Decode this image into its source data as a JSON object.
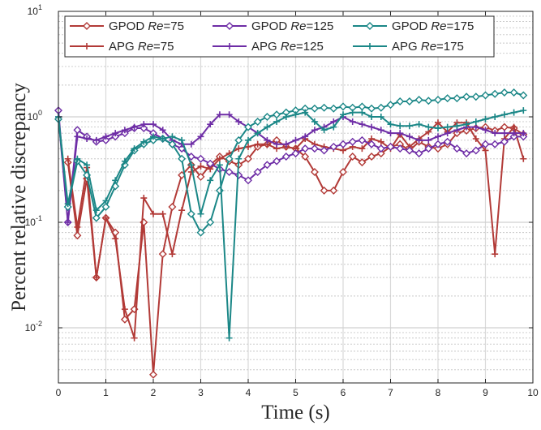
{
  "chart_data": {
    "type": "line",
    "ylabel": "Percent relative discrepancy",
    "xlabel": "Time (s)",
    "xlim": [
      0,
      10
    ],
    "ylim": [
      0.003,
      10
    ],
    "yscale": "log",
    "grid": true,
    "legend_position": "top",
    "x_ticks": [
      "0",
      "1",
      "2",
      "3",
      "4",
      "5",
      "6",
      "7",
      "8",
      "9",
      "10"
    ],
    "y_ticks": [
      {
        "base": "10",
        "exp": "-2"
      },
      {
        "base": "10",
        "exp": "-1"
      },
      {
        "base": "10",
        "exp": "0"
      },
      {
        "base": "10",
        "exp": "1"
      }
    ],
    "series": [
      {
        "name_prefix": "GPOD",
        "re_label": "Re",
        "re_value": "=75",
        "color": "#B23A37",
        "marker": "diamond",
        "x": [
          0.2,
          0.4,
          0.6,
          0.8,
          1.0,
          1.2,
          1.4,
          1.6,
          1.8,
          2.0,
          2.2,
          2.4,
          2.6,
          2.8,
          3.0,
          3.2,
          3.4,
          3.6,
          3.8,
          4.0,
          4.2,
          4.4,
          4.6,
          4.8,
          5.0,
          5.2,
          5.4,
          5.6,
          5.8,
          6.0,
          6.2,
          6.4,
          6.6,
          6.8,
          7.0,
          7.2,
          7.4,
          7.6,
          7.8,
          8.0,
          8.2,
          8.4,
          8.6,
          8.8,
          9.0,
          9.2,
          9.4,
          9.6,
          9.8
        ],
        "y": [
          0.37,
          0.075,
          0.26,
          0.03,
          0.11,
          0.08,
          0.012,
          0.015,
          0.1,
          0.0036,
          0.05,
          0.14,
          0.28,
          0.35,
          0.27,
          0.35,
          0.42,
          0.38,
          0.35,
          0.4,
          0.52,
          0.55,
          0.6,
          0.52,
          0.5,
          0.42,
          0.3,
          0.2,
          0.2,
          0.3,
          0.42,
          0.37,
          0.42,
          0.45,
          0.52,
          0.55,
          0.48,
          0.58,
          0.52,
          0.5,
          0.55,
          0.7,
          0.74,
          0.78,
          0.8,
          0.74,
          0.8,
          0.78,
          0.68
        ]
      },
      {
        "name_prefix": "APG",
        "re_label": "Re",
        "re_value": "=75",
        "color": "#B23A37",
        "marker": "plus",
        "x": [
          0.2,
          0.4,
          0.6,
          0.8,
          1.0,
          1.2,
          1.4,
          1.6,
          1.8,
          2.0,
          2.2,
          2.4,
          2.6,
          2.8,
          3.0,
          3.2,
          3.4,
          3.6,
          3.8,
          4.0,
          4.2,
          4.4,
          4.6,
          4.8,
          5.0,
          5.2,
          5.4,
          5.6,
          5.8,
          6.0,
          6.2,
          6.4,
          6.6,
          6.8,
          7.0,
          7.2,
          7.4,
          7.6,
          7.8,
          8.0,
          8.2,
          8.4,
          8.6,
          8.8,
          9.0,
          9.2,
          9.4,
          9.6,
          9.8
        ],
        "y": [
          0.4,
          0.09,
          0.33,
          0.03,
          0.11,
          0.07,
          0.015,
          0.008,
          0.17,
          0.12,
          0.12,
          0.05,
          0.13,
          0.3,
          0.34,
          0.32,
          0.4,
          0.45,
          0.5,
          0.52,
          0.55,
          0.55,
          0.5,
          0.52,
          0.5,
          0.62,
          0.55,
          0.52,
          0.5,
          0.48,
          0.52,
          0.5,
          0.62,
          0.58,
          0.5,
          0.68,
          0.52,
          0.62,
          0.72,
          0.88,
          0.72,
          0.88,
          0.88,
          0.62,
          0.48,
          0.05,
          0.62,
          0.8,
          0.4
        ]
      },
      {
        "name_prefix": "GPOD",
        "re_label": "Re",
        "re_value": "=125",
        "color": "#6E2DA6",
        "marker": "diamond",
        "x": [
          0.0,
          0.2,
          0.4,
          0.6,
          0.8,
          1.0,
          1.2,
          1.4,
          1.6,
          1.8,
          2.0,
          2.2,
          2.4,
          2.6,
          2.8,
          3.0,
          3.2,
          3.4,
          3.6,
          3.8,
          4.0,
          4.2,
          4.4,
          4.6,
          4.8,
          5.0,
          5.2,
          5.4,
          5.6,
          5.8,
          6.0,
          6.2,
          6.4,
          6.6,
          6.8,
          7.0,
          7.2,
          7.4,
          7.6,
          7.8,
          8.0,
          8.2,
          8.4,
          8.6,
          8.8,
          9.0,
          9.2,
          9.4,
          9.6,
          9.8
        ],
        "y": [
          1.15,
          0.1,
          0.75,
          0.65,
          0.58,
          0.6,
          0.65,
          0.7,
          0.78,
          0.78,
          0.7,
          0.62,
          0.55,
          0.5,
          0.42,
          0.4,
          0.36,
          0.32,
          0.3,
          0.28,
          0.25,
          0.3,
          0.35,
          0.38,
          0.42,
          0.45,
          0.5,
          0.5,
          0.48,
          0.52,
          0.55,
          0.58,
          0.6,
          0.55,
          0.5,
          0.52,
          0.5,
          0.48,
          0.45,
          0.5,
          0.55,
          0.58,
          0.5,
          0.45,
          0.48,
          0.55,
          0.55,
          0.58,
          0.65,
          0.65
        ]
      },
      {
        "name_prefix": "APG",
        "re_label": "Re",
        "re_value": "=125",
        "color": "#6E2DA6",
        "marker": "plus",
        "x": [
          0.0,
          0.2,
          0.4,
          0.6,
          0.8,
          1.0,
          1.2,
          1.4,
          1.6,
          1.8,
          2.0,
          2.2,
          2.4,
          2.6,
          2.8,
          3.0,
          3.2,
          3.4,
          3.6,
          3.8,
          4.0,
          4.2,
          4.4,
          4.6,
          4.8,
          5.0,
          5.2,
          5.4,
          5.6,
          5.8,
          6.0,
          6.2,
          6.4,
          6.6,
          6.8,
          7.0,
          7.2,
          7.4,
          7.6,
          7.8,
          8.0,
          8.2,
          8.4,
          8.6,
          8.8,
          9.0,
          9.2,
          9.4,
          9.6,
          9.8
        ],
        "y": [
          1.0,
          0.1,
          0.65,
          0.62,
          0.6,
          0.65,
          0.7,
          0.75,
          0.8,
          0.85,
          0.85,
          0.75,
          0.6,
          0.55,
          0.55,
          0.65,
          0.85,
          1.05,
          1.05,
          0.9,
          0.8,
          0.7,
          0.6,
          0.55,
          0.55,
          0.6,
          0.65,
          0.75,
          0.8,
          0.9,
          1.0,
          0.9,
          0.85,
          0.8,
          0.75,
          0.7,
          0.7,
          0.65,
          0.6,
          0.6,
          0.65,
          0.7,
          0.75,
          0.8,
          0.8,
          0.75,
          0.7,
          0.7,
          0.7,
          0.7
        ]
      },
      {
        "name_prefix": "GPOD",
        "re_label": "Re",
        "re_value": "=175",
        "color": "#1B8787",
        "marker": "diamond",
        "x": [
          0.0,
          0.2,
          0.4,
          0.6,
          0.8,
          1.0,
          1.2,
          1.4,
          1.6,
          1.8,
          2.0,
          2.2,
          2.4,
          2.6,
          2.8,
          3.0,
          3.2,
          3.4,
          3.6,
          3.8,
          4.0,
          4.2,
          4.4,
          4.6,
          4.8,
          5.0,
          5.2,
          5.4,
          5.6,
          5.8,
          6.0,
          6.2,
          6.4,
          6.6,
          6.8,
          7.0,
          7.2,
          7.4,
          7.6,
          7.8,
          8.0,
          8.2,
          8.4,
          8.6,
          8.8,
          9.0,
          9.2,
          9.4,
          9.6,
          9.8
        ],
        "y": [
          0.95,
          0.14,
          0.38,
          0.28,
          0.11,
          0.14,
          0.22,
          0.35,
          0.48,
          0.55,
          0.6,
          0.62,
          0.55,
          0.4,
          0.12,
          0.08,
          0.1,
          0.2,
          0.4,
          0.6,
          0.8,
          0.9,
          1.0,
          1.05,
          1.1,
          1.15,
          1.2,
          1.2,
          1.22,
          1.2,
          1.25,
          1.22,
          1.25,
          1.2,
          1.22,
          1.3,
          1.4,
          1.4,
          1.45,
          1.42,
          1.45,
          1.5,
          1.5,
          1.55,
          1.55,
          1.6,
          1.65,
          1.7,
          1.7,
          1.6
        ]
      },
      {
        "name_prefix": "APG",
        "re_label": "Re",
        "re_value": "=175",
        "color": "#1B8787",
        "marker": "plus",
        "x": [
          0.0,
          0.2,
          0.4,
          0.6,
          0.8,
          1.0,
          1.2,
          1.4,
          1.6,
          1.8,
          2.0,
          2.2,
          2.4,
          2.6,
          2.8,
          3.0,
          3.2,
          3.4,
          3.6,
          3.8,
          4.0,
          4.2,
          4.4,
          4.6,
          4.8,
          5.0,
          5.2,
          5.4,
          5.6,
          5.8,
          6.0,
          6.2,
          6.4,
          6.6,
          6.8,
          7.0,
          7.2,
          7.4,
          7.6,
          7.8,
          8.0,
          8.2,
          8.4,
          8.6,
          8.8,
          9.0,
          9.2,
          9.4,
          9.6,
          9.8
        ],
        "y": [
          1.0,
          0.15,
          0.4,
          0.35,
          0.13,
          0.16,
          0.25,
          0.38,
          0.5,
          0.58,
          0.65,
          0.62,
          0.65,
          0.6,
          0.35,
          0.12,
          0.25,
          0.35,
          0.008,
          0.4,
          0.6,
          0.7,
          0.8,
          0.9,
          1.0,
          1.05,
          1.1,
          0.9,
          0.75,
          0.8,
          1.05,
          1.1,
          1.1,
          1.0,
          1.0,
          0.85,
          0.82,
          0.82,
          0.85,
          0.8,
          0.78,
          0.8,
          0.82,
          0.85,
          0.9,
          0.95,
          1.0,
          1.05,
          1.1,
          1.15
        ]
      }
    ]
  }
}
